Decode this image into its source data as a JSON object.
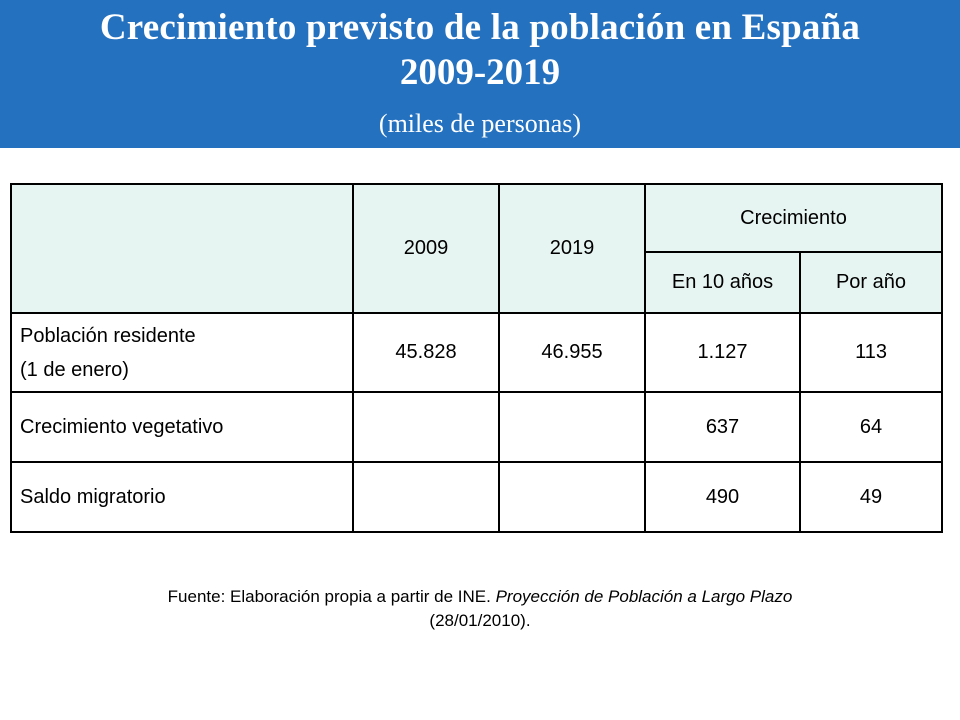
{
  "header": {
    "title_line1": "Crecimiento previsto de la población en España",
    "title_line2": "2009-2019",
    "subtitle": "(miles de personas)"
  },
  "table": {
    "col_2009": "2009",
    "col_2019": "2019",
    "col_growth": "Crecimiento",
    "col_growth_10": "En 10 años",
    "col_growth_year": "Por año",
    "rows": [
      {
        "label_line1": "Población residente",
        "label_line2": "(1 de enero)",
        "v2009": "45.828",
        "v2019": "46.955",
        "g10": "1.127",
        "gyear": "113"
      },
      {
        "label": "Crecimiento vegetativo",
        "v2009": "",
        "v2019": "",
        "g10": "637",
        "gyear": "64"
      },
      {
        "label": "Saldo migratorio",
        "v2009": "",
        "v2019": "",
        "g10": "490",
        "gyear": "49"
      }
    ]
  },
  "source": {
    "prefix": "Fuente: Elaboración propia a partir de INE.",
    "title": "Proyección de Población a Largo Plazo",
    "date": "(28/01/2010)."
  },
  "colors": {
    "banner": "#2471c0",
    "header_cells": "#e6f4f2"
  }
}
